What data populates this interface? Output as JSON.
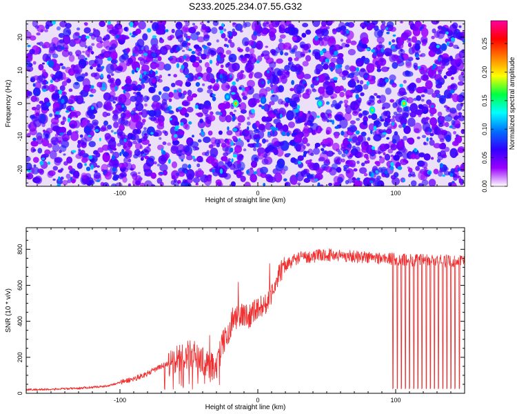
{
  "figure": {
    "title": "S233.2025.234.07.55.G32"
  },
  "chart_data": [
    {
      "type": "heatmap",
      "title": "S233.2025.234.07.55.G32",
      "xlabel": "Height of straight line (km)",
      "ylabel": "Frequency (Hz)",
      "xlim": [
        -168,
        150
      ],
      "ylim": [
        -25,
        25
      ],
      "xticks": [
        -100,
        0,
        100
      ],
      "xtick_labels": [
        "-100",
        "0",
        "100"
      ],
      "yticks": [
        -20,
        -10,
        0,
        10,
        20
      ],
      "ytick_labels": [
        "-20",
        "-10",
        "0",
        "10",
        "20"
      ],
      "colorbar": {
        "label": "Normalized spectral amplitude",
        "range": [
          0,
          0.29
        ],
        "ticks": [
          0,
          0.05,
          0.1,
          0.15,
          0.2,
          0.25
        ],
        "tick_labels": [
          "0.00",
          "0.05",
          "0.10",
          "0.15",
          "0.20",
          "0.25"
        ],
        "colors": [
          "#ffffff",
          "#9a00ff",
          "#3000ff",
          "#0070ff",
          "#00ffff",
          "#00ff40",
          "#ffff00",
          "#ff8000",
          "#ff0000",
          "#ff00a0"
        ]
      },
      "background_level": 0.03,
      "peaks": [
        {
          "x": -16,
          "y": 0,
          "value": 0.22
        },
        {
          "x": 45,
          "y": 0,
          "value": 0.15
        },
        {
          "x": 83,
          "y": -2,
          "value": 0.18
        },
        {
          "x": 106,
          "y": 0,
          "value": 0.21
        },
        {
          "x": -22,
          "y": 2,
          "value": 0.12
        },
        {
          "x": 4,
          "y": 1,
          "value": 0.1
        },
        {
          "x": -150,
          "y": 12,
          "value": 0.09
        },
        {
          "x": 135,
          "y": 17,
          "value": 0.08
        }
      ]
    },
    {
      "type": "line",
      "xlabel": "Height of straight line (km)",
      "ylabel": "SNR (10 * v/v)",
      "xlim": [
        -168,
        150
      ],
      "ylim": [
        0,
        920
      ],
      "xticks": [
        -100,
        0,
        100
      ],
      "xtick_labels": [
        "-100",
        "0",
        "100"
      ],
      "yticks": [
        0,
        200,
        400,
        600,
        800
      ],
      "ytick_labels": [
        "0",
        "200",
        "400",
        "600",
        "800"
      ],
      "series": [
        {
          "name": "SNR",
          "color": "#f03030",
          "x": [
            -168,
            -150,
            -130,
            -110,
            -100,
            -90,
            -80,
            -70,
            -62,
            -55,
            -50,
            -45,
            -40,
            -35,
            -30,
            -26,
            -22,
            -18,
            -14,
            -10,
            -6,
            -2,
            2,
            6,
            10,
            14,
            18,
            22,
            26,
            30,
            40,
            50,
            60,
            70,
            80,
            90,
            100,
            110,
            120,
            130,
            140,
            150
          ],
          "values": [
            20,
            22,
            28,
            40,
            60,
            80,
            110,
            150,
            170,
            200,
            220,
            210,
            180,
            140,
            160,
            260,
            330,
            420,
            420,
            440,
            430,
            470,
            480,
            500,
            560,
            640,
            690,
            720,
            740,
            755,
            760,
            770,
            765,
            760,
            755,
            750,
            745,
            740,
            740,
            735,
            735,
            740
          ],
          "dropout_x": [
            98,
            101,
            104,
            107,
            110,
            113,
            116,
            119,
            122,
            125,
            128,
            131,
            134,
            137,
            140,
            143,
            146
          ]
        }
      ]
    }
  ]
}
